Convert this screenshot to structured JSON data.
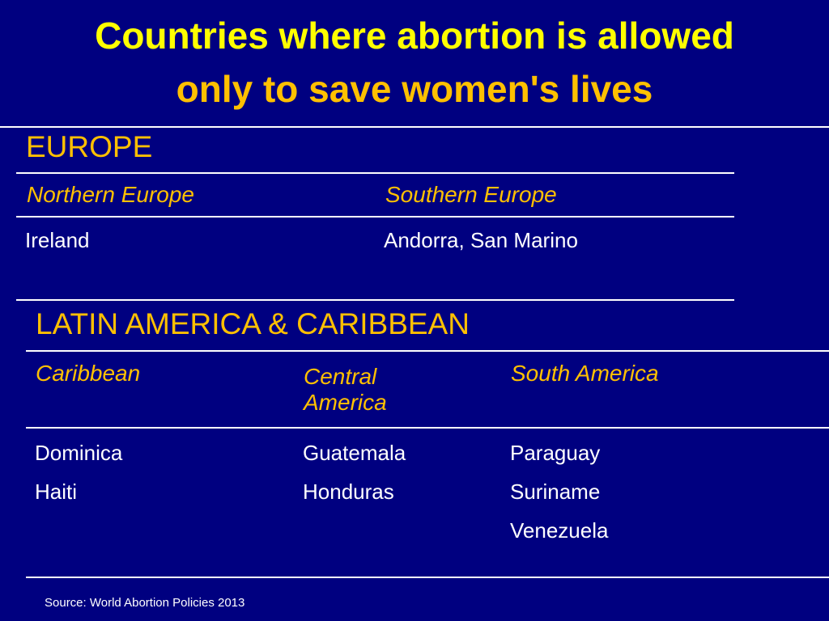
{
  "title": {
    "line1": "Countries where abortion is allowed",
    "line2": "only to save women's lives"
  },
  "europe": {
    "heading": "EUROPE",
    "columns": [
      {
        "header": "Northern Europe",
        "countries": [
          "Ireland"
        ]
      },
      {
        "header": "Southern Europe",
        "countries": [
          "Andorra, San Marino"
        ]
      }
    ]
  },
  "latin_america": {
    "heading": "LATIN AMERICA  & CARIBBEAN",
    "columns": [
      {
        "header": "Caribbean",
        "countries": [
          "Dominica",
          "Haiti"
        ]
      },
      {
        "header": "Central America",
        "countries": [
          "Guatemala",
          "Honduras"
        ]
      },
      {
        "header": "South America",
        "countries": [
          "Paraguay",
          "Suriname",
          "Venezuela"
        ]
      }
    ]
  },
  "source": "Source: World Abortion Policies 2013",
  "colors": {
    "background": "#000080",
    "title_primary": "#ffff00",
    "accent": "#ffc000",
    "text": "#ffffff"
  }
}
